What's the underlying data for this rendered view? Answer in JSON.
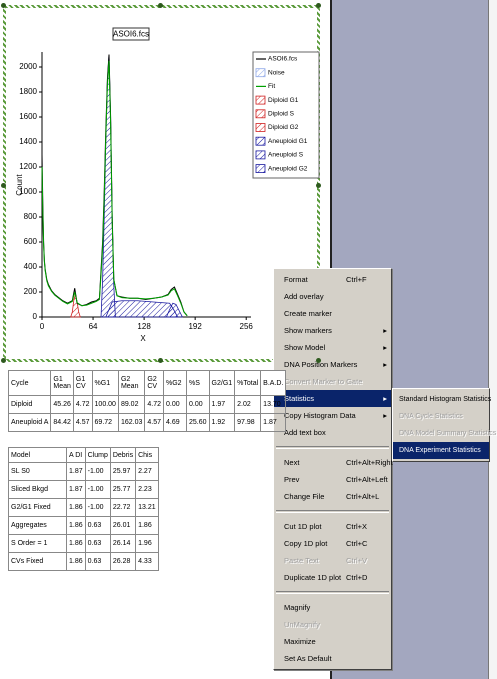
{
  "chart_data": {
    "type": "line",
    "title": "ASOI6.fcs",
    "x_label": "X",
    "y_label": "Count",
    "xlim": [
      0,
      262
    ],
    "ylim": [
      0,
      2120
    ],
    "xticks": [
      0,
      64,
      128,
      192,
      256
    ],
    "yticks": [
      0,
      200,
      400,
      600,
      800,
      1000,
      1200,
      1400,
      1600,
      1800,
      2000
    ],
    "series": [
      {
        "name": "ASOI6.fcs",
        "color": "#000000",
        "style": "line",
        "x": [
          0,
          1,
          2,
          3,
          4,
          6,
          8,
          12,
          16,
          20,
          26,
          32,
          38,
          41,
          44,
          50,
          56,
          62,
          68,
          72,
          76,
          78,
          80,
          82,
          84,
          86,
          88,
          90,
          94,
          100,
          110,
          120,
          130,
          140,
          150,
          158,
          162,
          166,
          170,
          174,
          178,
          182
        ],
        "values": [
          1300,
          900,
          600,
          450,
          380,
          300,
          260,
          210,
          180,
          160,
          130,
          110,
          130,
          230,
          110,
          90,
          100,
          120,
          130,
          150,
          600,
          1000,
          1500,
          1900,
          2100,
          1600,
          800,
          300,
          170,
          160,
          150,
          150,
          140,
          150,
          160,
          180,
          220,
          240,
          180,
          120,
          40,
          10
        ]
      },
      {
        "name": "Noise",
        "color": "#8fa8e8",
        "style": "hatch",
        "x": [],
        "values": []
      },
      {
        "name": "Fit",
        "color": "#00a000",
        "style": "line",
        "x": [
          0,
          1,
          2,
          3,
          4,
          6,
          8,
          12,
          16,
          20,
          26,
          32,
          38,
          41,
          44,
          50,
          56,
          62,
          68,
          72,
          76,
          78,
          80,
          82,
          84,
          86,
          88,
          90,
          94,
          100,
          110,
          120,
          130,
          140,
          150,
          158,
          162,
          166,
          170,
          174,
          178,
          182
        ],
        "values": [
          1200,
          850,
          580,
          440,
          370,
          290,
          250,
          205,
          175,
          155,
          125,
          105,
          125,
          200,
          115,
          90,
          95,
          110,
          125,
          140,
          550,
          950,
          1450,
          1850,
          2050,
          1550,
          750,
          300,
          170,
          155,
          150,
          150,
          145,
          150,
          160,
          175,
          210,
          225,
          170,
          110,
          40,
          10
        ]
      },
      {
        "name": "Diploid G1",
        "color": "#d02020",
        "style": "hatch",
        "x": [
          36,
          38,
          40,
          42,
          44,
          46,
          48
        ],
        "values": [
          0,
          40,
          140,
          180,
          120,
          40,
          0
        ]
      },
      {
        "name": "Diploid S",
        "color": "#d02020",
        "style": "hatch",
        "x": [],
        "values": []
      },
      {
        "name": "Diploid G2",
        "color": "#d02020",
        "style": "hatch",
        "x": [],
        "values": []
      },
      {
        "name": "Aneuploid G1",
        "color": "#1a1aa0",
        "style": "hatch",
        "x": [
          74,
          76,
          78,
          80,
          82,
          84,
          86,
          88,
          90,
          92
        ],
        "values": [
          0,
          300,
          800,
          1400,
          1900,
          2100,
          1600,
          800,
          250,
          0
        ]
      },
      {
        "name": "Aneuploid S",
        "color": "#1a1aa0",
        "style": "hatch",
        "x": [
          80,
          88,
          100,
          120,
          140,
          160,
          165,
          170
        ],
        "values": [
          0,
          120,
          130,
          130,
          120,
          110,
          60,
          0
        ]
      },
      {
        "name": "Aneuploid G2",
        "color": "#1a1aa0",
        "style": "hatch",
        "x": [
          156,
          160,
          164,
          168,
          172,
          176
        ],
        "values": [
          0,
          60,
          110,
          100,
          50,
          0
        ]
      }
    ]
  },
  "cycle_table": {
    "header": [
      "Cycle",
      "G1 Mean",
      "G1 CV",
      "%G1",
      "G2 Mean",
      "G2 CV",
      "%G2",
      "%S",
      "G2/G1",
      "%Total",
      "B.A.D."
    ],
    "rows": [
      [
        "Diploid",
        "45.26",
        "4.72",
        "100.00",
        "89.02",
        "4.72",
        "0.00",
        "0.00",
        "1.97",
        "2.02",
        "13.70"
      ],
      [
        "Aneuploid A",
        "84.42",
        "4.57",
        "69.72",
        "162.03",
        "4.57",
        "4.69",
        "25.60",
        "1.92",
        "97.98",
        "1.87"
      ]
    ]
  },
  "model_table": {
    "header": [
      "Model",
      "A DI",
      "Clump",
      "Debris",
      "Chis"
    ],
    "rows": [
      [
        "SL S0",
        "1.87",
        "-1.00",
        "25.97",
        "2.27"
      ],
      [
        "Sliced Bkgd",
        "1.87",
        "-1.00",
        "25.77",
        "2.23"
      ],
      [
        "G2/G1 Fixed",
        "1.86",
        "-1.00",
        "22.72",
        "13.21"
      ],
      [
        "Aggregates",
        "1.86",
        "0.63",
        "26.01",
        "1.86"
      ],
      [
        "S Order = 1",
        "1.86",
        "0.63",
        "26.14",
        "1.96"
      ],
      [
        "CVs Fixed",
        "1.86",
        "0.63",
        "26.28",
        "4.33"
      ]
    ]
  },
  "context_menu": {
    "groups": [
      [
        {
          "label": "Format",
          "shortcut": "Ctrl+F"
        },
        {
          "label": "Add overlay"
        },
        {
          "label": "Create marker"
        },
        {
          "label": "Show markers",
          "submenu": true
        },
        {
          "label": "Show Model",
          "submenu": true
        },
        {
          "label": "DNA Position Markers",
          "submenu": true
        },
        {
          "label": "Convert Marker to Gate",
          "disabled": true
        },
        {
          "label": "Statistics",
          "submenu": true,
          "highlighted": true
        },
        {
          "label": "Copy Histogram Data",
          "submenu": true
        },
        {
          "label": "Add text box"
        }
      ],
      [
        {
          "label": "Next",
          "shortcut": "Ctrl+Alt+Right"
        },
        {
          "label": "Prev",
          "shortcut": "Ctrl+Alt+Left"
        },
        {
          "label": "Change File",
          "shortcut": "Ctrl+Alt+L"
        }
      ],
      [
        {
          "label": "Cut 1D plot",
          "shortcut": "Ctrl+X"
        },
        {
          "label": "Copy 1D plot",
          "shortcut": "Ctrl+C"
        },
        {
          "label": "Paste Text",
          "shortcut": "Ctrl+V",
          "disabled": true
        },
        {
          "label": "Duplicate 1D plot",
          "shortcut": "Ctrl+D"
        }
      ],
      [
        {
          "label": "Magnify"
        },
        {
          "label": "UnMagnify",
          "disabled": true
        },
        {
          "label": "Maximize"
        },
        {
          "label": "Set As Default"
        }
      ]
    ]
  },
  "statistics_submenu": [
    {
      "label": "Standard Histogram Statistics"
    },
    {
      "label": "DNA Cycle Statistics",
      "disabled": true
    },
    {
      "label": "DNA Model Summary Statistics",
      "disabled": true
    },
    {
      "label": "DNA Experiment Statistics",
      "highlighted": true
    }
  ]
}
